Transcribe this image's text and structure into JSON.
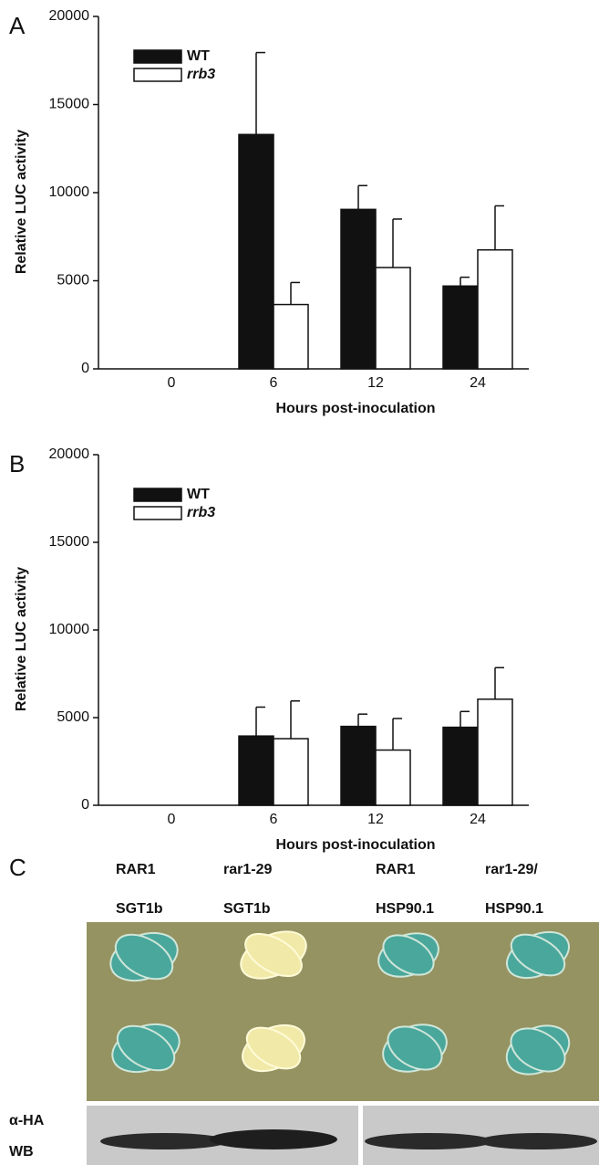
{
  "chart_data": [
    {
      "type": "bar",
      "panel": "A",
      "xlabel": "Hours post-inoculation",
      "ylabel": "Relative LUC activity",
      "categories": [
        "0",
        "6",
        "12",
        "24"
      ],
      "series": [
        {
          "name": "WT",
          "color": "#111111",
          "values": [
            null,
            13300,
            9050,
            4700
          ],
          "errors": [
            null,
            4650,
            1350,
            500
          ]
        },
        {
          "name": "rrb3",
          "color": "#ffffff",
          "values": [
            null,
            3650,
            5750,
            6750
          ],
          "errors": [
            null,
            1250,
            2750,
            2500
          ]
        }
      ],
      "ylim": [
        0,
        20000
      ],
      "yticks": [
        0,
        5000,
        10000,
        15000,
        20000
      ],
      "grid": false
    },
    {
      "type": "bar",
      "panel": "B",
      "xlabel": "Hours post-inoculation",
      "ylabel": "Relative LUC activity",
      "categories": [
        "0",
        "6",
        "12",
        "24"
      ],
      "series": [
        {
          "name": "WT",
          "color": "#111111",
          "values": [
            null,
            3950,
            4500,
            4450
          ],
          "errors": [
            null,
            1650,
            700,
            900
          ]
        },
        {
          "name": "rrb3",
          "color": "#ffffff",
          "values": [
            null,
            3800,
            3150,
            6050
          ],
          "errors": [
            null,
            2150,
            1800,
            1800
          ]
        }
      ],
      "ylim": [
        0,
        20000
      ],
      "yticks": [
        0,
        5000,
        10000,
        15000,
        20000
      ],
      "grid": false
    }
  ],
  "panel_c": {
    "panel": "C",
    "strains": [
      {
        "line1": "RAR1",
        "line2": "SGT1b"
      },
      {
        "line1": "rar1-29",
        "line2": "SGT1b"
      },
      {
        "line1": "RAR1",
        "line2": "HSP90.1"
      },
      {
        "line1": "rar1-29/",
        "line2": "HSP90.1"
      }
    ],
    "blot_label": [
      "α-HA",
      "WB"
    ]
  }
}
